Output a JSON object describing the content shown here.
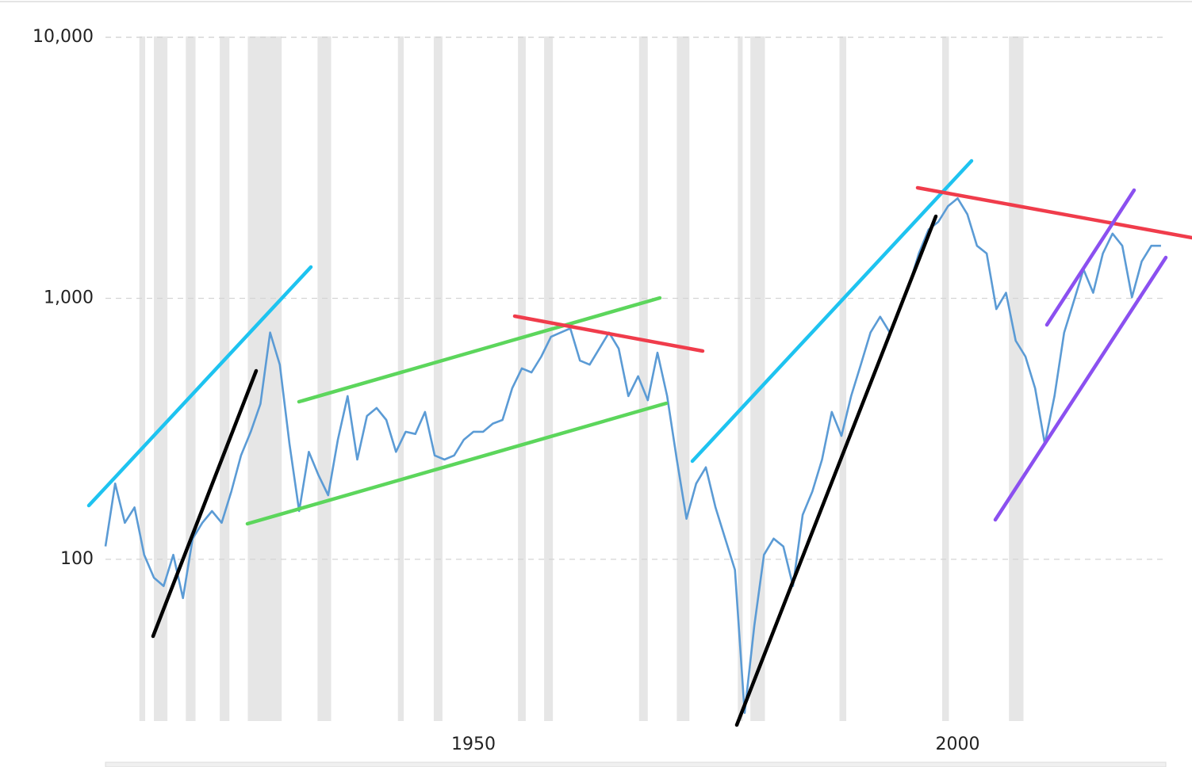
{
  "chart_data": {
    "type": "line",
    "ylog": true,
    "grid": true,
    "color": "#5b9bd5",
    "recession_color": "#e6e6e6",
    "xlim": [
      1912,
      2021.5
    ],
    "ylim": [
      24,
      12000
    ],
    "xticks": [
      1950,
      2000
    ],
    "yticks": [
      100,
      {
        "value": 1000,
        "label": "1,000"
      },
      {
        "value": 10000,
        "label": "10,000"
      }
    ],
    "recessions": [
      [
        1915.5,
        1916.1
      ],
      [
        1917.0,
        1918.4
      ],
      [
        1920.3,
        1921.3
      ],
      [
        1923.8,
        1924.8
      ],
      [
        1926.7,
        1930.2
      ],
      [
        1933.9,
        1935.3
      ],
      [
        1942.2,
        1942.8
      ],
      [
        1945.9,
        1946.8
      ],
      [
        1954.6,
        1955.4
      ],
      [
        1957.3,
        1958.2
      ],
      [
        1967.1,
        1968.0
      ],
      [
        1971.0,
        1972.3
      ],
      [
        1977.3,
        1977.8
      ],
      [
        1978.6,
        1980.1
      ],
      [
        1987.8,
        1988.5
      ],
      [
        1998.4,
        1999.1
      ],
      [
        2005.3,
        2006.8
      ]
    ],
    "x": [
      1912,
      1913,
      1914,
      1915,
      1916,
      1917,
      1918,
      1919,
      1920,
      1921,
      1922,
      1923,
      1924,
      1925,
      1926,
      1927,
      1928,
      1929,
      1930,
      1931,
      1932,
      1933,
      1934,
      1935,
      1936,
      1937,
      1938,
      1939,
      1940,
      1941,
      1942,
      1943,
      1944,
      1945,
      1946,
      1947,
      1948,
      1949,
      1950,
      1951,
      1952,
      1953,
      1954,
      1955,
      1956,
      1957,
      1958,
      1959,
      1960,
      1961,
      1962,
      1963,
      1964,
      1965,
      1966,
      1967,
      1968,
      1969,
      1970,
      1971,
      1972,
      1973,
      1974,
      1975,
      1976,
      1977,
      1978,
      1979,
      1980,
      1981,
      1982,
      1983,
      1984,
      1985,
      1986,
      1987,
      1988,
      1989,
      1990,
      1991,
      1992,
      1993,
      1994,
      1995,
      1996,
      1997,
      1998,
      1999,
      2000,
      2001,
      2002,
      2003,
      2004,
      2005,
      2006,
      2007,
      2008,
      2009,
      2010,
      2011,
      2012,
      2013,
      2014,
      2015,
      2016,
      2017,
      2018,
      2019,
      2020,
      2021
    ],
    "values": [
      112,
      195,
      138,
      158,
      104,
      85,
      79,
      104,
      71,
      120,
      138,
      153,
      138,
      182,
      250,
      308,
      394,
      739,
      557,
      277,
      153,
      258,
      210,
      176,
      287,
      422,
      241,
      354,
      380,
      342,
      258,
      308,
      302,
      367,
      250,
      241,
      250,
      287,
      308,
      308,
      331,
      342,
      452,
      539,
      520,
      598,
      712,
      739,
      767,
      577,
      557,
      642,
      739,
      642,
      422,
      503,
      407,
      619,
      422,
      241,
      143,
      195,
      225,
      158,
      120,
      91,
      25.8,
      55.6,
      104,
      120,
      112,
      79,
      148,
      182,
      241,
      367,
      297,
      422,
      557,
      739,
      850,
      739,
      909,
      1124,
      1485,
      1835,
      1963,
      2253,
      2416,
      2100,
      1589,
      1485,
      909,
      1050,
      688,
      598,
      452,
      277,
      422,
      739,
      975,
      1290,
      1050,
      1485,
      1770,
      1589,
      1009,
      1383,
      1589,
      1589
    ]
  }
}
